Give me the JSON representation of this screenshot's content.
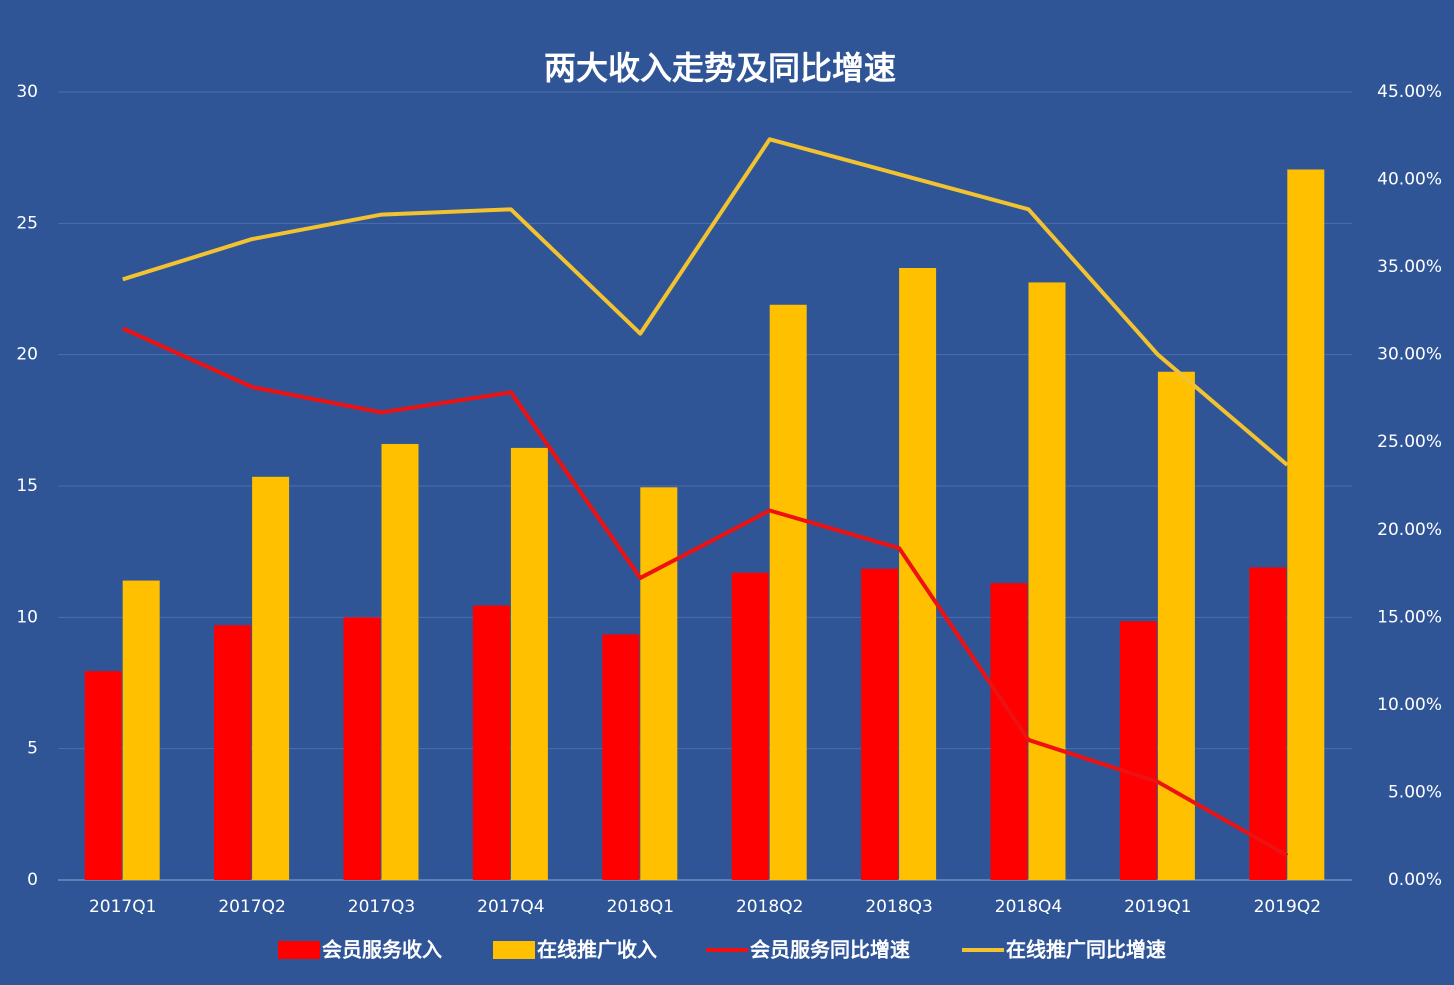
{
  "chart_data": {
    "type": "bar-line",
    "title": "两大收入走势及同比增速",
    "categories": [
      "2017Q1",
      "2017Q2",
      "2017Q3",
      "2017Q4",
      "2018Q1",
      "2018Q2",
      "2018Q3",
      "2018Q4",
      "2019Q1",
      "2019Q2"
    ],
    "series": [
      {
        "name": "会员服务收入",
        "type": "bar",
        "color": "#ff0000",
        "values": [
          7.95,
          9.7,
          10.0,
          10.45,
          9.35,
          11.7,
          11.85,
          11.3,
          9.85,
          11.9
        ]
      },
      {
        "name": "在线推广收入",
        "type": "bar",
        "color": "#ffc000",
        "values": [
          11.4,
          15.35,
          16.6,
          16.45,
          14.95,
          21.9,
          23.3,
          22.75,
          19.35,
          27.05
        ]
      },
      {
        "name": "会员服务同比增速",
        "type": "line",
        "axis": "y2",
        "color": "#ee1111",
        "values": [
          31.5,
          28.15,
          26.7,
          27.85,
          17.25,
          21.1,
          18.95,
          8.0,
          5.6,
          1.4
        ]
      },
      {
        "name": "在线推广同比增速",
        "type": "line",
        "axis": "y2",
        "color": "#f2c230",
        "values": [
          34.3,
          36.6,
          38.0,
          38.3,
          31.2,
          42.3,
          40.3,
          38.3,
          30.0,
          23.7
        ]
      }
    ],
    "ylim": [
      0,
      30
    ],
    "yticks": [
      0,
      5,
      10,
      15,
      20,
      25,
      30
    ],
    "y2lim": [
      0,
      45
    ],
    "y2ticks": [
      {
        "value": 0,
        "label": "0.00%"
      },
      {
        "value": 5,
        "label": "5.00%"
      },
      {
        "value": 10,
        "label": "10.00%"
      },
      {
        "value": 15,
        "label": "15.00%"
      },
      {
        "value": 20,
        "label": "20.00%"
      },
      {
        "value": 25,
        "label": "25.00%"
      },
      {
        "value": 30,
        "label": "30.00%"
      },
      {
        "value": 35,
        "label": "35.00%"
      },
      {
        "value": 40,
        "label": "40.00%"
      },
      {
        "value": 45,
        "label": "45.00%"
      }
    ],
    "grid": true
  }
}
